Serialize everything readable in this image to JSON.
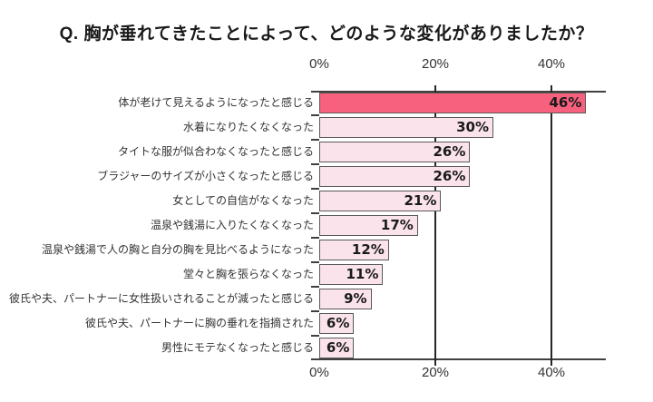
{
  "chart_data": {
    "type": "bar",
    "orientation": "horizontal",
    "title": "Q. 胸が垂れてきたことによって、どのような変化がありましたか？",
    "categories": [
      "体が老けて見えるようになったと感じる",
      "水着になりたくなくなった",
      "タイトな服が似合わなくなったと感じる",
      "ブラジャーのサイズが小さくなったと感じる",
      "女としての自信がなくなった",
      "温泉や銭湯に入りたくなくなった",
      "温泉や銭湯で人の胸と自分の胸を見比べるようになった",
      "堂々と胸を張らなくなった",
      "彼氏や夫、パートナーに女性扱いされることが減ったと感じる",
      "彼氏や夫、パートナーに胸の垂れを指摘された",
      "男性にモテなくなったと感じる"
    ],
    "values": [
      46,
      30,
      26,
      26,
      21,
      17,
      12,
      11,
      9,
      6,
      6
    ],
    "value_labels": [
      "46%",
      "30%",
      "26%",
      "26%",
      "21%",
      "17%",
      "12%",
      "11%",
      "9%",
      "6%",
      "6%"
    ],
    "xlim": [
      0,
      50
    ],
    "x_ticks": [
      {
        "value": 0,
        "label": "0%"
      },
      {
        "value": 20,
        "label": "20%"
      },
      {
        "value": 40,
        "label": "40%"
      }
    ],
    "x_axis_position": "top and bottom",
    "grid": "vertical gridlines at 20% and 40%",
    "legend": "none",
    "highlight_index": 0,
    "colors": {
      "bar_highlight": "#F8617E",
      "bar_normal": "#FBE3EB",
      "bar_border": "#595959",
      "axis_line": "#404040",
      "gridline": "#262626",
      "text": "#1A1A1A"
    }
  }
}
